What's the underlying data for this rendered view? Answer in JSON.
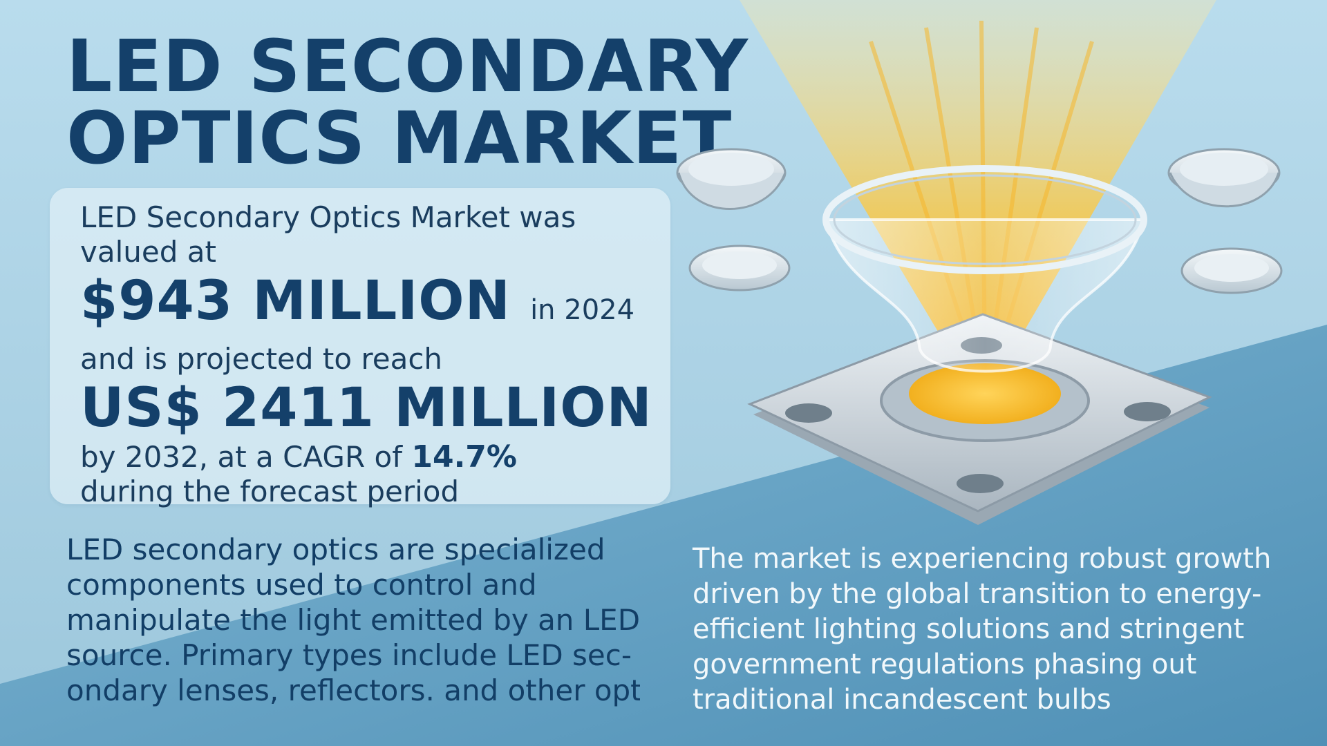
{
  "title": {
    "line1": "LED SECONDARY",
    "line2": "OPTICS MARKET"
  },
  "stats": {
    "line1": "LED Secondary Optics Market was",
    "line2": "valued at",
    "value_2024": "$943 MILLION",
    "year_suffix": "in 2024",
    "line3": "and is projected to reach",
    "value_2032": "US$ 2411 MILLION",
    "line4_prefix": "by 2032, at a CAGR of",
    "cagr": "14.7%",
    "line5": "during the forecast period"
  },
  "description": {
    "left_lines": [
      "LED secondary optics are specialized",
      "components used to control and",
      "manipulate the light emitted by an LED",
      "source. Primary types include LED sec-",
      "ondary lenses, reflectors. and other opti"
    ],
    "right_lines": [
      "The market is experiencing robust growth",
      "driven by the global transition to energy-",
      "efficient lighting solutions and stringent",
      "government regulations phasing out",
      "traditional incandescent bulbs"
    ]
  },
  "colors": {
    "title": "#14406a",
    "background_light": "#b9dced",
    "background_dark": "#5e9fc2",
    "light_beam": "#f6c23b"
  },
  "icons": [
    "led-optic-lens-illustration",
    "small-lens-icon"
  ]
}
